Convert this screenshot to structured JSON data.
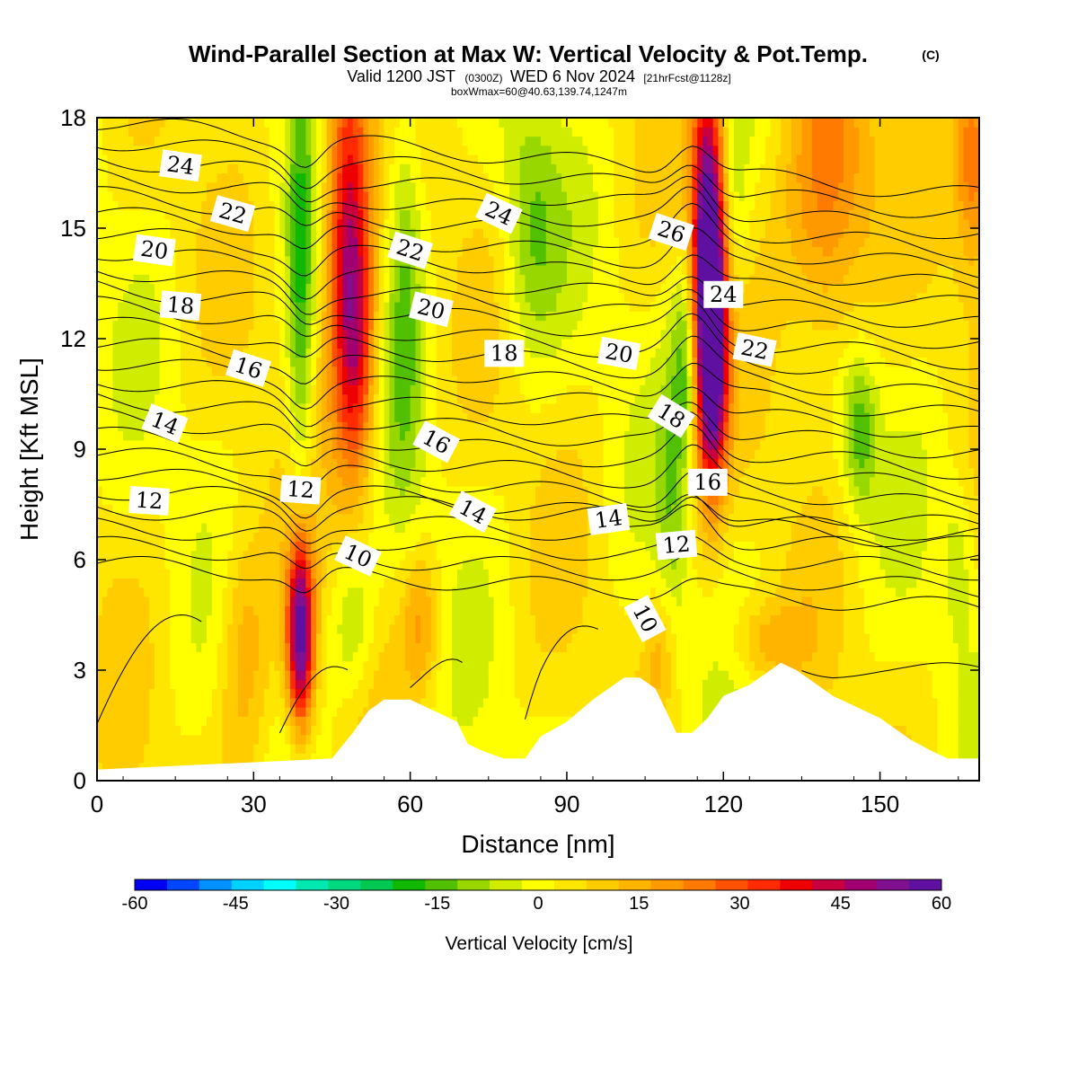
{
  "title": {
    "main": "Wind-Parallel Section at Max W: Vertical Velocity & Pot.Temp.",
    "copyright": "(C)",
    "valid_prefix": "Valid 1200 JST",
    "valid_zone": "(0300Z)",
    "valid_date": "WED 6 Nov 2024",
    "valid_fcst": "[21hrFcst@1128z]",
    "box_info": "boxWmax=60@40.63,139.74,1247m"
  },
  "chart_data": {
    "type": "heatmap",
    "xlabel": "Distance [nm]",
    "ylabel": "Height [Kft MSL]",
    "xlim": [
      0,
      169
    ],
    "ylim": [
      0,
      18
    ],
    "xticks": [
      0,
      30,
      60,
      90,
      120,
      150
    ],
    "yticks": [
      0,
      3,
      6,
      9,
      12,
      15,
      18
    ],
    "xtick_labels": [
      "0",
      "30",
      "60",
      "90",
      "120",
      "150"
    ],
    "ytick_labels": [
      "0",
      "3",
      "6",
      "9",
      "12",
      "15",
      "18"
    ],
    "terrain": {
      "x": [
        0,
        45,
        49,
        52,
        55,
        60,
        69,
        71,
        74,
        78,
        82,
        85,
        90,
        95,
        98,
        101,
        104,
        107,
        111,
        114,
        117,
        120,
        125,
        128,
        131,
        134,
        137,
        141,
        144,
        147,
        150,
        153,
        156,
        160,
        163,
        169
      ],
      "y": [
        0.3,
        0.6,
        1.3,
        1.9,
        2.2,
        2.2,
        1.6,
        1.0,
        0.8,
        0.6,
        0.6,
        1.2,
        1.6,
        2.2,
        2.5,
        2.8,
        2.8,
        2.5,
        1.3,
        1.3,
        1.7,
        2.3,
        2.6,
        2.9,
        3.2,
        3.0,
        2.7,
        2.3,
        2.1,
        1.9,
        1.7,
        1.4,
        1.1,
        0.8,
        0.6,
        0.6
      ]
    },
    "vertical_velocity_cells": [
      {
        "x": 39,
        "z": 4.0,
        "sx": 1.8,
        "sz": 1.8,
        "w": 60
      },
      {
        "x": 48,
        "z": 15.0,
        "sx": 3.0,
        "sz": 4.0,
        "w": 40
      },
      {
        "x": 50,
        "z": 11.5,
        "sx": 2.5,
        "sz": 2.5,
        "w": 22
      },
      {
        "x": 117,
        "z": 14.5,
        "sx": 2.2,
        "sz": 3.5,
        "w": 58
      },
      {
        "x": 118,
        "z": 11.5,
        "sx": 2.0,
        "sz": 2.5,
        "w": 42
      },
      {
        "x": 140,
        "z": 16.0,
        "sx": 6.0,
        "sz": 3.0,
        "w": 25
      },
      {
        "x": 168,
        "z": 17.0,
        "sx": 2.5,
        "sz": 2.0,
        "w": 25
      },
      {
        "x": 28,
        "z": 3.5,
        "sx": 3.5,
        "sz": 2.5,
        "w": 14
      },
      {
        "x": 62,
        "z": 4.3,
        "sx": 2.5,
        "sz": 1.3,
        "w": 15
      },
      {
        "x": 128,
        "z": 3.8,
        "sx": 5.0,
        "sz": 0.8,
        "w": 12
      },
      {
        "x": 108,
        "z": 3.6,
        "sx": 2.0,
        "sz": 1.2,
        "w": 10
      },
      {
        "x": 39,
        "z": 13.0,
        "sx": 1.8,
        "sz": 5.0,
        "w": -18
      },
      {
        "x": 59,
        "z": 14.0,
        "sx": 2.5,
        "sz": 4.5,
        "w": -14
      },
      {
        "x": 83,
        "z": 15.0,
        "sx": 4.0,
        "sz": 2.5,
        "w": -14
      },
      {
        "x": 113,
        "z": 11.5,
        "sx": 1.8,
        "sz": 2.0,
        "w": -18
      },
      {
        "x": 146,
        "z": 9.5,
        "sx": 2.5,
        "sz": 1.5,
        "w": -18
      },
      {
        "x": 49,
        "z": 4.3,
        "sx": 3.0,
        "sz": 1.5,
        "w": -12
      },
      {
        "x": 110,
        "z": 7.5,
        "sx": 2.0,
        "sz": 3.0,
        "w": -10
      },
      {
        "x": 122,
        "z": 15.5,
        "sx": 2.0,
        "sz": 2.0,
        "w": -8
      },
      {
        "x": 165,
        "z": 6.0,
        "sx": 2.0,
        "sz": 1.5,
        "w": -8
      }
    ],
    "contour_labels": [
      {
        "text": "24",
        "x": 16,
        "z": 16.7,
        "rot": 8
      },
      {
        "text": "22",
        "x": 26,
        "z": 15.4,
        "rot": 16
      },
      {
        "text": "20",
        "x": 11,
        "z": 14.4,
        "rot": 8
      },
      {
        "text": "18",
        "x": 16,
        "z": 12.9,
        "rot": 5
      },
      {
        "text": "16",
        "x": 29,
        "z": 11.2,
        "rot": 18
      },
      {
        "text": "14",
        "x": 13,
        "z": 9.7,
        "rot": 22
      },
      {
        "text": "12",
        "x": 10,
        "z": 7.6,
        "rot": 4
      },
      {
        "text": "12",
        "x": 39,
        "z": 7.9,
        "rot": 4
      },
      {
        "text": "10",
        "x": 50,
        "z": 6.1,
        "rot": 25
      },
      {
        "text": "22",
        "x": 60,
        "z": 14.4,
        "rot": 18
      },
      {
        "text": "20",
        "x": 64,
        "z": 12.8,
        "rot": 14
      },
      {
        "text": "24",
        "x": 77,
        "z": 15.4,
        "rot": 25
      },
      {
        "text": "18",
        "x": 78,
        "z": 11.6,
        "rot": 0
      },
      {
        "text": "16",
        "x": 65,
        "z": 9.2,
        "rot": 28
      },
      {
        "text": "14",
        "x": 72,
        "z": 7.3,
        "rot": 28
      },
      {
        "text": "14",
        "x": 98,
        "z": 7.1,
        "rot": -8
      },
      {
        "text": "20",
        "x": 100,
        "z": 11.6,
        "rot": 10
      },
      {
        "text": "18",
        "x": 110,
        "z": 9.9,
        "rot": 32
      },
      {
        "text": "26",
        "x": 110,
        "z": 14.9,
        "rot": 18
      },
      {
        "text": "24",
        "x": 120,
        "z": 13.2,
        "rot": 0
      },
      {
        "text": "22",
        "x": 126,
        "z": 11.7,
        "rot": 12
      },
      {
        "text": "16",
        "x": 117,
        "z": 8.1,
        "rot": 0
      },
      {
        "text": "12",
        "x": 111,
        "z": 6.4,
        "rot": -5
      },
      {
        "text": "10",
        "x": 105,
        "z": 4.4,
        "rot": 62
      }
    ]
  },
  "colorbar": {
    "title": "Vertical Velocity [cm/s]",
    "min": -60,
    "max": 60,
    "tick_values": [
      -60,
      -45,
      -30,
      -15,
      0,
      15,
      30,
      45,
      60
    ],
    "tick_labels": [
      "-60",
      "-45",
      "-30",
      "-15",
      "0",
      "15",
      "30",
      "45",
      "60"
    ],
    "colors": [
      "#0000f5",
      "#0046ff",
      "#0090ff",
      "#00d2ff",
      "#00ffff",
      "#00e8b0",
      "#00d880",
      "#00c850",
      "#10b800",
      "#50c000",
      "#98d800",
      "#d0ec00",
      "#ffff00",
      "#ffe600",
      "#ffcc00",
      "#ffb400",
      "#ff9900",
      "#ff7a00",
      "#ff5200",
      "#ff2a00",
      "#ee0000",
      "#c80040",
      "#a00070",
      "#801090",
      "#6010a0"
    ]
  }
}
